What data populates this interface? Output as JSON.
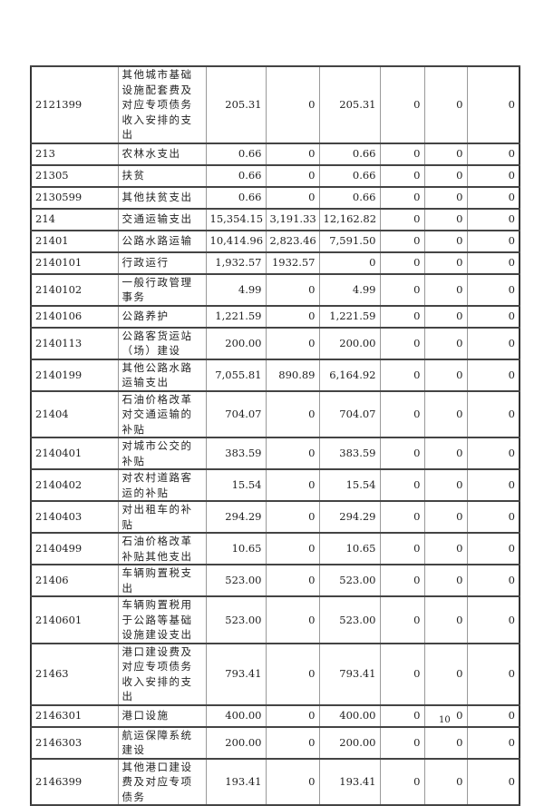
{
  "rows": [
    {
      "code": "2121399",
      "name": "其他城市基础设施配套费及对应专项债务收入安排的支出",
      "v": [
        "205.31",
        "0",
        "205.31",
        "0",
        "0",
        "0"
      ],
      "lines": 4
    },
    {
      "code": "213",
      "name": "农林水支出",
      "v": [
        "0.66",
        "0",
        "0.66",
        "0",
        "0",
        "0"
      ],
      "lines": 1
    },
    {
      "code": "21305",
      "name": "扶贫",
      "v": [
        "0.66",
        "0",
        "0.66",
        "0",
        "0",
        "0"
      ],
      "lines": 1
    },
    {
      "code": "2130599",
      "name": "其他扶贫支出",
      "v": [
        "0.66",
        "0",
        "0.66",
        "0",
        "0",
        "0"
      ],
      "lines": 1
    },
    {
      "code": "214",
      "name": "交通运输支出",
      "v": [
        "15,354.15",
        "3,191.33",
        "12,162.82",
        "0",
        "0",
        "0"
      ],
      "lines": 1
    },
    {
      "code": "21401",
      "name": "公路水路运输",
      "v": [
        "10,414.96",
        "2,823.46",
        "7,591.50",
        "0",
        "0",
        "0"
      ],
      "lines": 1
    },
    {
      "code": "2140101",
      "name": "行政运行",
      "v": [
        "1,932.57",
        "1932.57",
        "0",
        "0",
        "0",
        "0"
      ],
      "lines": 1
    },
    {
      "code": "2140102",
      "name": "一般行政管理事务",
      "v": [
        "4.99",
        "0",
        "4.99",
        "0",
        "0",
        "0"
      ],
      "lines": 2
    },
    {
      "code": "2140106",
      "name": "公路养护",
      "v": [
        "1,221.59",
        "0",
        "1,221.59",
        "0",
        "0",
        "0"
      ],
      "lines": 1
    },
    {
      "code": "2140113",
      "name": "公路客货运站（场）建设",
      "v": [
        "200.00",
        "0",
        "200.00",
        "0",
        "0",
        "0"
      ],
      "lines": 2
    },
    {
      "code": "2140199",
      "name": "其他公路水路运输支出",
      "v": [
        "7,055.81",
        "890.89",
        "6,164.92",
        "0",
        "0",
        "0"
      ],
      "lines": 2
    },
    {
      "code": "21404",
      "name": "石油价格改革对交通运输的补贴",
      "v": [
        "704.07",
        "0",
        "704.07",
        "0",
        "0",
        "0"
      ],
      "lines": 2
    },
    {
      "code": "2140401",
      "name": "对城市公交的补贴",
      "v": [
        "383.59",
        "0",
        "383.59",
        "0",
        "0",
        "0"
      ],
      "lines": 2
    },
    {
      "code": "2140402",
      "name": "对农村道路客运的补贴",
      "v": [
        "15.54",
        "0",
        "15.54",
        "0",
        "0",
        "0"
      ],
      "lines": 2
    },
    {
      "code": "2140403",
      "name": "对出租车的补贴",
      "v": [
        "294.29",
        "0",
        "294.29",
        "0",
        "0",
        "0"
      ],
      "lines": 1
    },
    {
      "code": "2140499",
      "name": "石油价格改革补贴其他支出",
      "v": [
        "10.65",
        "0",
        "10.65",
        "0",
        "0",
        "0"
      ],
      "lines": 2
    },
    {
      "code": "21406",
      "name": "车辆购置税支出",
      "v": [
        "523.00",
        "0",
        "523.00",
        "0",
        "0",
        "0"
      ],
      "lines": 1
    },
    {
      "code": "2140601",
      "name": "车辆购置税用于公路等基础设施建设支出",
      "v": [
        "523.00",
        "0",
        "523.00",
        "0",
        "0",
        "0"
      ],
      "lines": 3
    },
    {
      "code": "21463",
      "name": "港口建设费及对应专项债务收入安排的支出",
      "v": [
        "793.41",
        "0",
        "793.41",
        "0",
        "0",
        "0"
      ],
      "lines": 3
    },
    {
      "code": "2146301",
      "name": "港口设施",
      "v": [
        "400.00",
        "0",
        "400.00",
        "0",
        "0",
        "0"
      ],
      "lines": 1
    },
    {
      "code": "2146303",
      "name": "航运保障系统建设",
      "v": [
        "200.00",
        "0",
        "200.00",
        "0",
        "0",
        "0"
      ],
      "lines": 2
    },
    {
      "code": "2146399",
      "name": "其他港口建设费及对应专项债务",
      "v": [
        "193.41",
        "0",
        "193.41",
        "0",
        "0",
        "0"
      ],
      "lines": 2
    }
  ],
  "page_number": "10"
}
